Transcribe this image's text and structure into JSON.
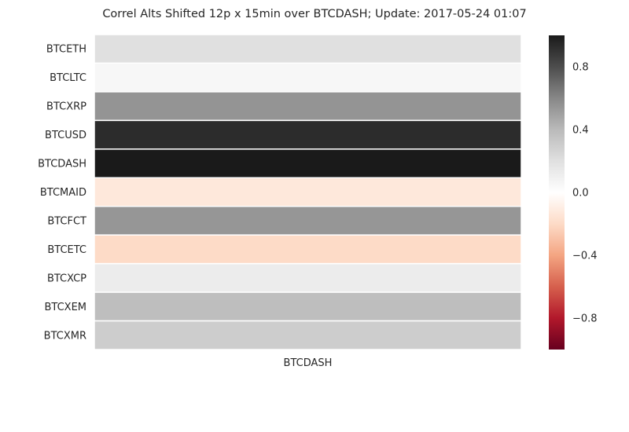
{
  "chart_data": {
    "type": "heatmap",
    "title": "Correl Alts Shifted 12p x 15min over BTCDASH; Update: 2017-05-24 01:07",
    "xlabel": "",
    "ylabel": "",
    "columns": [
      "BTCDASH"
    ],
    "rows": [
      "BTCETH",
      "BTCLTC",
      "BTCXRP",
      "BTCUSD",
      "BTCDASH",
      "BTCMAID",
      "BTCFCT",
      "BTCETC",
      "BTCXCP",
      "BTCXEM",
      "BTCXMR"
    ],
    "values": [
      0.2,
      0.05,
      0.55,
      0.93,
      1.0,
      -0.13,
      0.54,
      -0.2,
      0.12,
      0.38,
      0.3
    ],
    "colorbar": {
      "vmin": -1.0,
      "vmax": 1.0,
      "ticks": [
        -0.8,
        -0.4,
        0.0,
        0.4,
        0.8
      ],
      "tick_labels": [
        "−0.8",
        "−0.4",
        "0.0",
        "0.4",
        "0.8"
      ],
      "colormap": "RdGy_r"
    },
    "grid": false
  }
}
